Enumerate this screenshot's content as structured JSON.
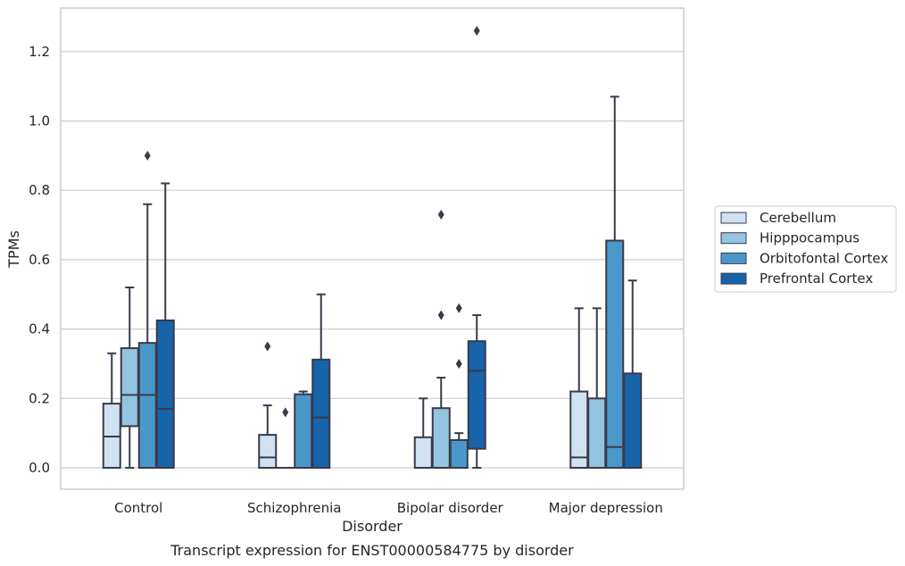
{
  "chart_data": {
    "type": "box",
    "title": "",
    "caption": "Transcript expression for ENST00000584775 by disorder",
    "xlabel": "Disorder",
    "ylabel": "TPMs",
    "ylim": [
      -0.06,
      1.32
    ],
    "yticks": [
      "0.0",
      "0.2",
      "0.4",
      "0.6",
      "0.8",
      "1.0",
      "1.2"
    ],
    "grid": "horizontal",
    "legend_position": "right",
    "categories": [
      "Control",
      "Schizophrenia",
      "Bipolar disorder",
      "Major depression"
    ],
    "series": [
      {
        "name": "Cerebellum",
        "color": "#d0e1f2",
        "boxes": [
          {
            "whisker_low": 0.0,
            "q1": 0.0,
            "median": 0.09,
            "q3": 0.185,
            "whisker_high": 0.33,
            "outliers": []
          },
          {
            "whisker_low": 0.0,
            "q1": 0.0,
            "median": 0.03,
            "q3": 0.095,
            "whisker_high": 0.18,
            "outliers": [
              0.35
            ]
          },
          {
            "whisker_low": 0.0,
            "q1": 0.0,
            "median": 0.0,
            "q3": 0.088,
            "whisker_high": 0.2,
            "outliers": []
          },
          {
            "whisker_low": 0.0,
            "q1": 0.0,
            "median": 0.03,
            "q3": 0.22,
            "whisker_high": 0.46,
            "outliers": []
          }
        ]
      },
      {
        "name": "Hipppocampus",
        "color": "#94c4df",
        "boxes": [
          {
            "whisker_low": 0.0,
            "q1": 0.12,
            "median": 0.21,
            "q3": 0.345,
            "whisker_high": 0.52,
            "outliers": []
          },
          {
            "whisker_low": 0.0,
            "q1": 0.0,
            "median": 0.0,
            "q3": 0.0,
            "whisker_high": 0.0,
            "outliers": [
              0.16
            ]
          },
          {
            "whisker_low": 0.0,
            "q1": 0.0,
            "median": 0.0,
            "q3": 0.172,
            "whisker_high": 0.26,
            "outliers": [
              0.44,
              0.73
            ]
          },
          {
            "whisker_low": 0.0,
            "q1": 0.0,
            "median": 0.0,
            "q3": 0.2,
            "whisker_high": 0.46,
            "outliers": []
          }
        ]
      },
      {
        "name": "Orbitofontal Cortex",
        "color": "#4a98c9",
        "boxes": [
          {
            "whisker_low": 0.0,
            "q1": 0.0,
            "median": 0.21,
            "q3": 0.36,
            "whisker_high": 0.76,
            "outliers": [
              0.9
            ]
          },
          {
            "whisker_low": 0.0,
            "q1": 0.0,
            "median": 0.0,
            "q3": 0.212,
            "whisker_high": 0.22,
            "outliers": []
          },
          {
            "whisker_low": 0.0,
            "q1": 0.0,
            "median": 0.0,
            "q3": 0.08,
            "whisker_high": 0.1,
            "outliers": [
              0.3,
              0.46
            ]
          },
          {
            "whisker_low": 0.0,
            "q1": 0.0,
            "median": 0.06,
            "q3": 0.655,
            "whisker_high": 1.07,
            "outliers": []
          }
        ]
      },
      {
        "name": "Prefrontal Cortex",
        "color": "#1764ab",
        "boxes": [
          {
            "whisker_low": 0.0,
            "q1": 0.0,
            "median": 0.17,
            "q3": 0.425,
            "whisker_high": 0.82,
            "outliers": []
          },
          {
            "whisker_low": 0.0,
            "q1": 0.0,
            "median": 0.145,
            "q3": 0.312,
            "whisker_high": 0.5,
            "outliers": []
          },
          {
            "whisker_low": 0.0,
            "q1": 0.055,
            "median": 0.28,
            "q3": 0.365,
            "whisker_high": 0.44,
            "outliers": [
              1.26
            ]
          },
          {
            "whisker_low": 0.0,
            "q1": 0.0,
            "median": 0.0,
            "q3": 0.272,
            "whisker_high": 0.54,
            "outliers": []
          }
        ]
      }
    ]
  }
}
